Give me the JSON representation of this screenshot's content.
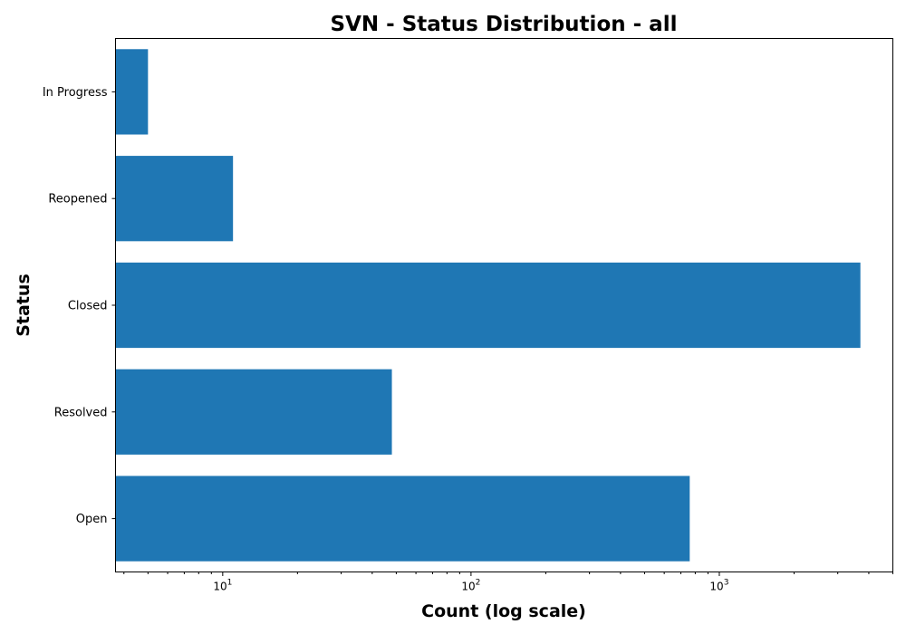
{
  "chart_data": {
    "type": "bar",
    "orientation": "horizontal",
    "title": "SVN - Status Distribution - all",
    "xlabel": "Count (log scale)",
    "ylabel": "Status",
    "x_scale": "log",
    "xlim": [
      3.7,
      5000
    ],
    "x_major_ticks": [
      {
        "base": "10",
        "exp": "1",
        "value": 10
      },
      {
        "base": "10",
        "exp": "2",
        "value": 100
      },
      {
        "base": "10",
        "exp": "3",
        "value": 1000
      }
    ],
    "categories": [
      "Open",
      "Resolved",
      "Closed",
      "Reopened",
      "In Progress"
    ],
    "values": [
      760,
      48,
      3700,
      11,
      5
    ],
    "bar_color": "#1f77b4",
    "grid": false
  }
}
